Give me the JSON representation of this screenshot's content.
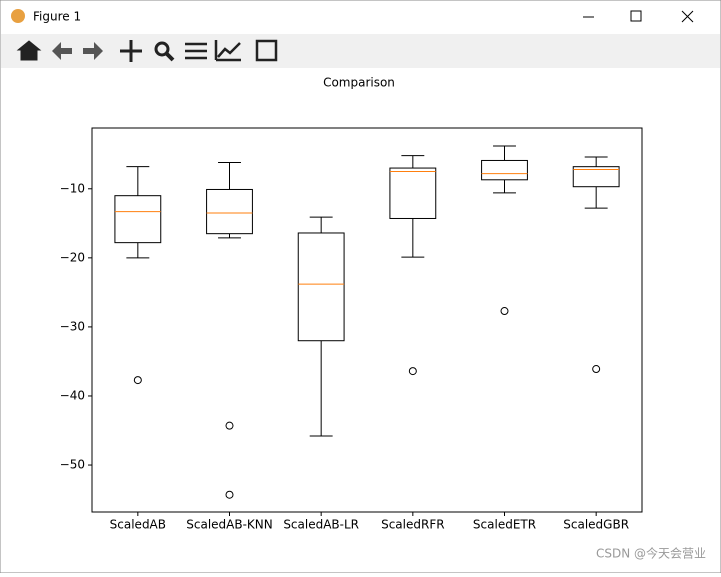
{
  "window": {
    "title": "Figure 1"
  },
  "watermark": "CSDN @今天会营业",
  "chart_data": {
    "type": "boxplot",
    "title": "Comparison",
    "categories": [
      "ScaledAB",
      "ScaledAB-KNN",
      "ScaledAB-LR",
      "ScaledRFR",
      "ScaledETR",
      "ScaledGBR"
    ],
    "boxes": [
      {
        "whislo": -20.0,
        "q1": -17.8,
        "med": -13.3,
        "q3": -11.0,
        "whishi": -6.8,
        "fliers": [
          -37.7
        ]
      },
      {
        "whislo": -17.1,
        "q1": -16.5,
        "med": -13.5,
        "q3": -10.1,
        "whishi": -6.2,
        "fliers": [
          -44.3,
          -54.3
        ]
      },
      {
        "whislo": -45.8,
        "q1": -32.0,
        "med": -23.8,
        "q3": -16.4,
        "whishi": -14.1,
        "fliers": []
      },
      {
        "whislo": -19.9,
        "q1": -14.3,
        "med": -7.5,
        "q3": -7.0,
        "whishi": -5.2,
        "fliers": [
          -36.4
        ]
      },
      {
        "whislo": -10.6,
        "q1": -8.7,
        "med": -7.8,
        "q3": -5.9,
        "whishi": -3.8,
        "fliers": [
          -27.7
        ]
      },
      {
        "whislo": -12.8,
        "q1": -9.7,
        "med": -7.2,
        "q3": -6.8,
        "whishi": -5.4,
        "fliers": [
          -36.1
        ]
      }
    ],
    "box_color": "#000000",
    "median_color": "#ff7f0e",
    "ylim": [
      -56.8,
      -1.2
    ],
    "yticks": [
      {
        "value": -10,
        "label": "−10"
      },
      {
        "value": -20,
        "label": "−20"
      },
      {
        "value": -30,
        "label": "−30"
      },
      {
        "value": -40,
        "label": "−40"
      },
      {
        "value": -50,
        "label": "−50"
      }
    ],
    "grid": false
  }
}
